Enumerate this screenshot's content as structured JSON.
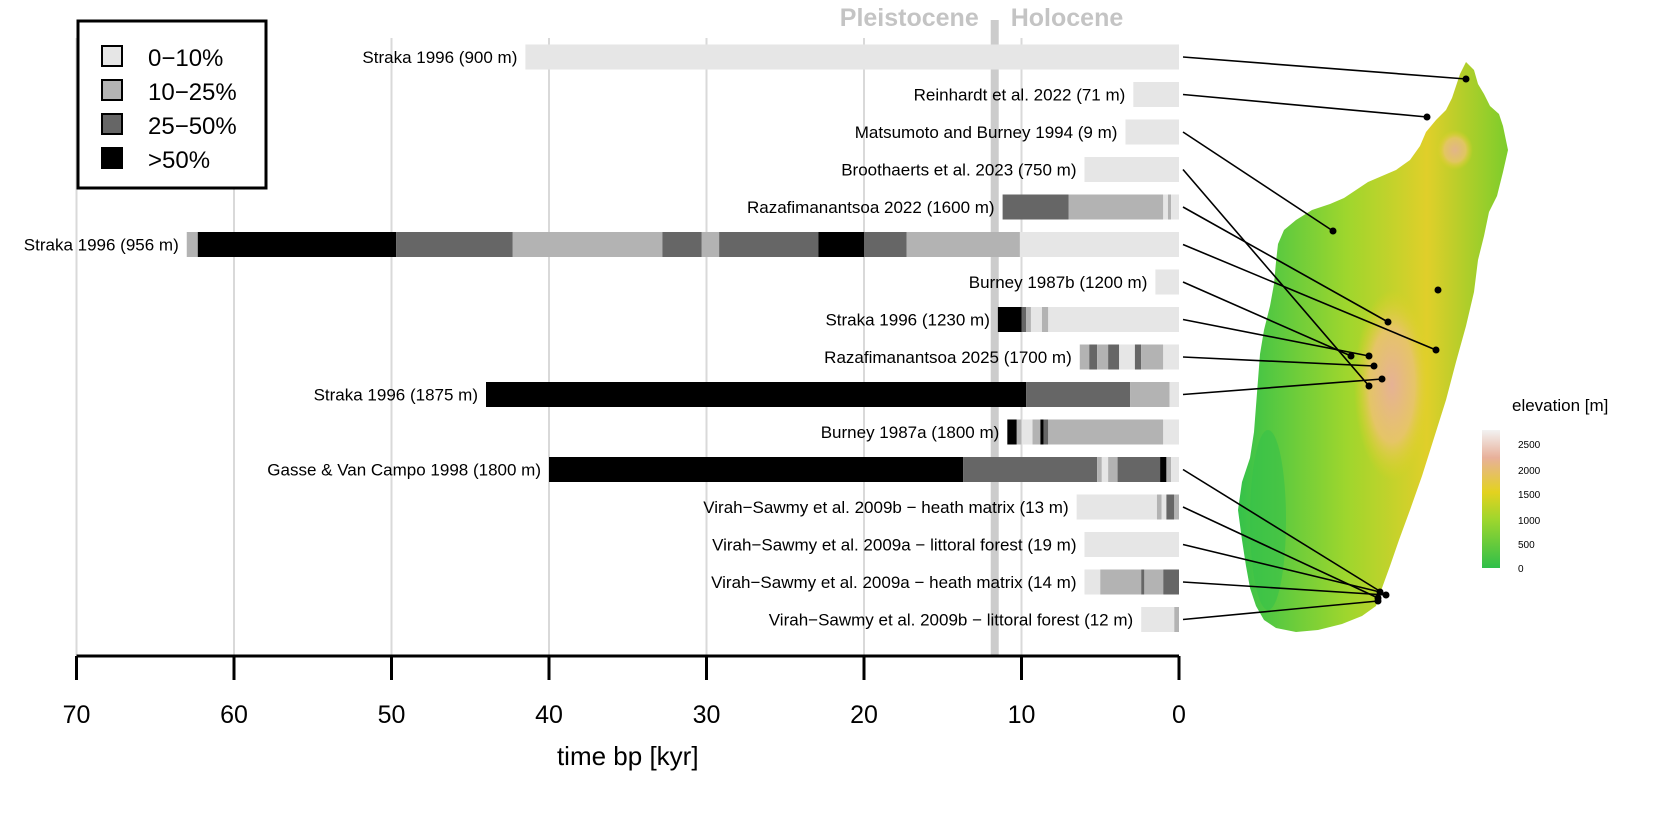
{
  "chart_data": {
    "type": "bar",
    "title": "",
    "xlabel": "time bp [kyr]",
    "xlim": [
      70,
      0
    ],
    "x_ticks": [
      70,
      60,
      50,
      40,
      30,
      20,
      10,
      0
    ],
    "grid": true,
    "legend": {
      "placement": "top-left",
      "entries": [
        {
          "label": "0−10%",
          "color": "#e6e6e6"
        },
        {
          "label": "10−25%",
          "color": "#b3b3b3"
        },
        {
          "label": "25−50%",
          "color": "#666666"
        },
        {
          "label": ">50%",
          "color": "#000000"
        }
      ]
    },
    "boundary": {
      "left_label": "Pleistocene",
      "right_label": "Holocene",
      "time": 11.7
    },
    "records": [
      {
        "label": "Straka 1996 (900 m)",
        "segments": [
          [
            41.5,
            0,
            0
          ]
        ]
      },
      {
        "label": "Reinhardt et al. 2022 (71 m)",
        "segments": [
          [
            2.9,
            0,
            0
          ]
        ]
      },
      {
        "label": "Matsumoto and Burney 1994 (9 m)",
        "segments": [
          [
            3.4,
            0,
            0
          ]
        ]
      },
      {
        "label": "Broothaerts et al. 2023 (750 m)",
        "segments": [
          [
            6.0,
            0,
            0
          ]
        ]
      },
      {
        "label": "Razafimanantsoa 2022 (1600 m)",
        "segments": [
          [
            11.2,
            7.0,
            2
          ],
          [
            7.0,
            1.0,
            1
          ],
          [
            1.0,
            0.7,
            0
          ],
          [
            0.7,
            0.5,
            1
          ],
          [
            0.5,
            0,
            0
          ]
        ]
      },
      {
        "label": "Straka 1996 (956 m)",
        "segments": [
          [
            63.0,
            62.3,
            1
          ],
          [
            62.3,
            49.7,
            3
          ],
          [
            49.7,
            42.3,
            2
          ],
          [
            42.3,
            32.8,
            1
          ],
          [
            32.8,
            30.3,
            2
          ],
          [
            30.3,
            29.2,
            1
          ],
          [
            29.2,
            22.9,
            2
          ],
          [
            22.9,
            20.0,
            3
          ],
          [
            20.0,
            17.3,
            2
          ],
          [
            17.3,
            10.1,
            1
          ],
          [
            10.1,
            0,
            0
          ]
        ]
      },
      {
        "label": "Burney 1987b (1200 m)",
        "segments": [
          [
            1.5,
            0,
            0
          ]
        ]
      },
      {
        "label": "Straka 1996 (1230 m)",
        "segments": [
          [
            11.5,
            10.0,
            3
          ],
          [
            10.0,
            9.7,
            2
          ],
          [
            9.7,
            9.4,
            1
          ],
          [
            9.4,
            8.7,
            0
          ],
          [
            8.7,
            8.3,
            1
          ],
          [
            8.3,
            0,
            0
          ]
        ]
      },
      {
        "label": "Razafimanantsoa 2025 (1700 m)",
        "segments": [
          [
            6.3,
            5.7,
            1
          ],
          [
            5.7,
            5.2,
            2
          ],
          [
            5.2,
            4.5,
            1
          ],
          [
            4.5,
            3.8,
            2
          ],
          [
            3.8,
            2.8,
            0
          ],
          [
            2.8,
            2.4,
            2
          ],
          [
            2.4,
            1.0,
            1
          ],
          [
            1.0,
            0,
            0
          ]
        ]
      },
      {
        "label": "Straka 1996 (1875 m)",
        "segments": [
          [
            44.0,
            9.7,
            3
          ],
          [
            9.7,
            3.1,
            2
          ],
          [
            3.1,
            0.6,
            1
          ],
          [
            0.6,
            0,
            0
          ]
        ]
      },
      {
        "label": "Burney 1987a (1800 m)",
        "segments": [
          [
            10.9,
            10.3,
            3
          ],
          [
            10.3,
            10.0,
            1
          ],
          [
            10.0,
            9.3,
            0
          ],
          [
            9.3,
            8.8,
            1
          ],
          [
            8.8,
            8.6,
            3
          ],
          [
            8.6,
            8.3,
            2
          ],
          [
            8.3,
            1.0,
            1
          ],
          [
            1.0,
            0,
            0
          ]
        ]
      },
      {
        "label": "Gasse & Van Campo 1998 (1800 m)",
        "segments": [
          [
            40.0,
            13.7,
            3
          ],
          [
            13.7,
            5.2,
            2
          ],
          [
            5.2,
            4.9,
            1
          ],
          [
            4.9,
            4.5,
            0
          ],
          [
            4.5,
            3.9,
            1
          ],
          [
            3.9,
            1.2,
            2
          ],
          [
            1.2,
            0.8,
            3
          ],
          [
            0.8,
            0.5,
            1
          ],
          [
            0.5,
            0,
            0
          ]
        ]
      },
      {
        "label": "Virah−Sawmy et al. 2009b − heath matrix (13 m)",
        "segments": [
          [
            6.5,
            1.4,
            0
          ],
          [
            1.4,
            1.1,
            1
          ],
          [
            1.1,
            0.8,
            0
          ],
          [
            0.8,
            0.3,
            2
          ],
          [
            0.3,
            0,
            1
          ]
        ]
      },
      {
        "label": "Virah−Sawmy et al. 2009a − littoral forest (19 m)",
        "segments": [
          [
            6.0,
            0,
            0
          ]
        ]
      },
      {
        "label": "Virah−Sawmy et al. 2009a − heath matrix (14 m)",
        "segments": [
          [
            6.0,
            5.0,
            0
          ],
          [
            5.0,
            2.4,
            1
          ],
          [
            2.4,
            2.2,
            2
          ],
          [
            2.2,
            1.0,
            1
          ],
          [
            1.0,
            0,
            2
          ]
        ]
      },
      {
        "label": "Virah−Sawmy et al. 2009b − littoral forest (12 m)",
        "segments": [
          [
            2.4,
            0.3,
            0
          ],
          [
            0.3,
            0,
            1
          ]
        ]
      }
    ]
  },
  "map": {
    "colorbar_title": "elevation [m]",
    "colorbar_ticks": [
      "2500",
      "2000",
      "1500",
      "1000",
      "500",
      "0"
    ],
    "colors": {
      "high": "#f2f2f2",
      "upper": "#e8b09a",
      "mid": "#e3d21f",
      "low": "#7ccd2b",
      "base": "#2fbf4a"
    }
  }
}
